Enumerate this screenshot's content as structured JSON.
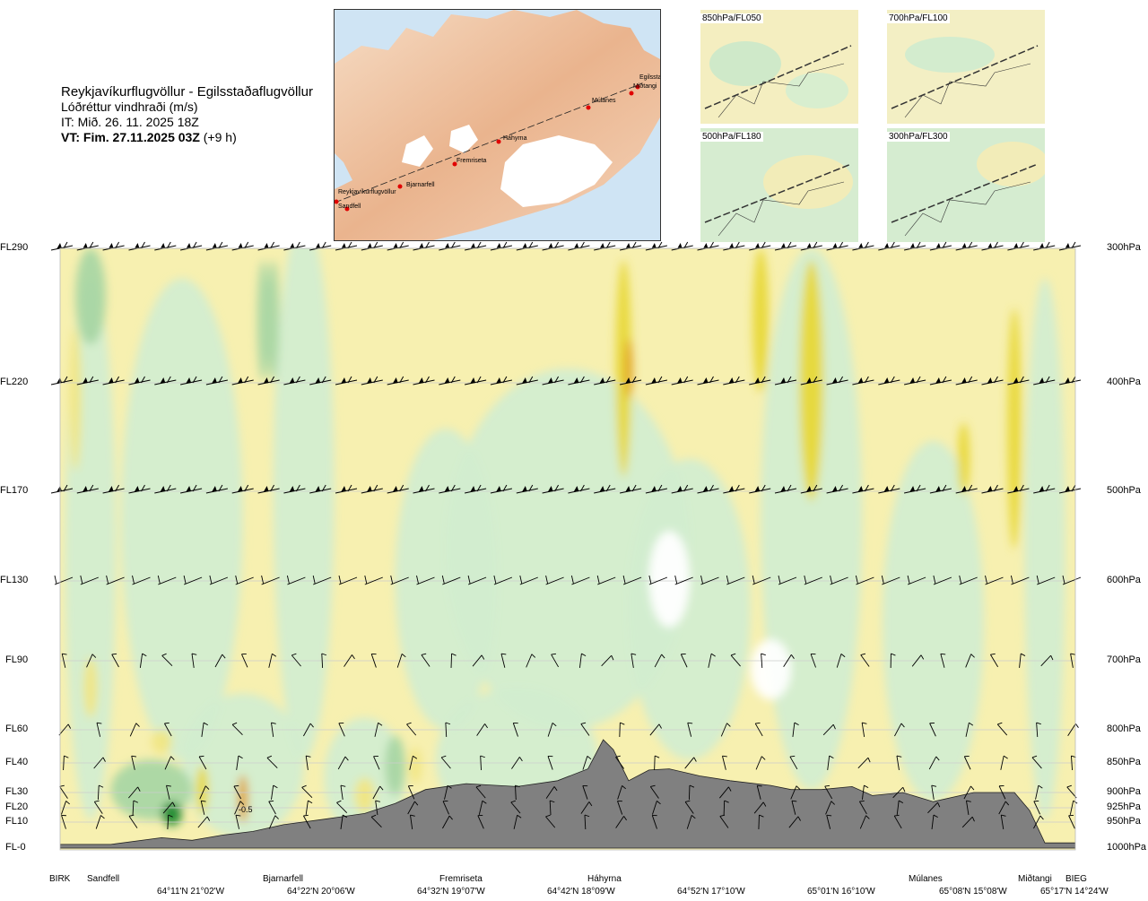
{
  "header": {
    "route": "Reykjavíkurflugvöllur - Egilsstaðaflugvöllur",
    "variable": "Lóðréttur vindhraði (m/s)",
    "issue_time": "IT: Mið. 26. 11. 2025 18Z",
    "valid_time_bold": "VT: Fim. 27.11.2025 03Z",
    "valid_time_offset": "(+9 h)"
  },
  "map": {
    "cities": [
      "Reykjavíkurflugvöllur",
      "Sandfell",
      "Bjarnarfell",
      "Fremriseta",
      "Háhyrna",
      "Múlanes",
      "Egilsstaðir",
      "Miðtangi"
    ]
  },
  "thumbnails": [
    {
      "label": "850hPa/FL050"
    },
    {
      "label": "700hPa/FL100"
    },
    {
      "label": "500hPa/FL180"
    },
    {
      "label": "300hPa/FL300"
    }
  ],
  "chart_data": {
    "type": "heatmap",
    "title": "Reykjavíkurflugvöllur - Egilsstaðaflugvöllur",
    "variable": "Lóðréttur vindhraði (m/s)",
    "x_axis": {
      "locations": [
        "BIRK",
        "Sandfell",
        "Bjarnarfell",
        "Fremriseta",
        "Háhyrna",
        "Múlanes",
        "Miðtangi",
        "BIEG"
      ],
      "location_pos": [
        0.0,
        0.05,
        0.22,
        0.39,
        0.54,
        0.83,
        0.96,
        1.0
      ],
      "coordinates": [
        "64°11'N 21°02'W",
        "64°22'N 20°06'W",
        "64°32'N 19°07'W",
        "64°42'N 18°09'W",
        "64°52'N 17°10'W",
        "65°01'N 16°10'W",
        "65°08'N 15°08'W",
        "65°17'N 14°24'W"
      ],
      "coordinate_pos": [
        0.125,
        0.25,
        0.385,
        0.515,
        0.645,
        0.775,
        0.9,
        1.0
      ]
    },
    "y_levels": [
      {
        "fl": "FL290",
        "hpa": "300hPa",
        "p": 300
      },
      {
        "fl": "FL220",
        "hpa": "400hPa",
        "p": 400
      },
      {
        "fl": "FL170",
        "hpa": "500hPa",
        "p": 500
      },
      {
        "fl": "FL130",
        "hpa": "600hPa",
        "p": 600
      },
      {
        "fl": "FL90",
        "hpa": "700hPa",
        "p": 700
      },
      {
        "fl": "FL60",
        "hpa": "800hPa",
        "p": 800
      },
      {
        "fl": "FL40",
        "hpa": "850hPa",
        "p": 850
      },
      {
        "fl": "FL30",
        "hpa": "900hPa",
        "p": 900
      },
      {
        "fl": "FL20",
        "hpa": "925hPa",
        "p": 925
      },
      {
        "fl": "FL10",
        "hpa": "950hPa",
        "p": 950
      },
      {
        "fl": "FL-0",
        "hpa": "1000hPa",
        "p": 1000
      }
    ],
    "contour_label": "-0.5",
    "colors": {
      "strong_down": "#1e8a2e",
      "down": "#7fc07a",
      "weak_down": "#a9d6a4",
      "slight_down": "#d3edd0",
      "neutral": "#ffffff",
      "slight_up": "#f7f0b0",
      "weak_up": "#f1e684",
      "up": "#e8d83a",
      "strong_up": "#e0a020",
      "terrain": "#808080"
    },
    "terrain": {
      "x": [
        0.0,
        0.05,
        0.1,
        0.13,
        0.16,
        0.19,
        0.22,
        0.26,
        0.3,
        0.33,
        0.36,
        0.4,
        0.45,
        0.49,
        0.52,
        0.535,
        0.545,
        0.56,
        0.58,
        0.6,
        0.63,
        0.66,
        0.7,
        0.72,
        0.75,
        0.78,
        0.8,
        0.83,
        0.86,
        0.9,
        0.94,
        0.955,
        0.97,
        1.0
      ],
      "p": [
        993,
        993,
        980,
        985,
        975,
        968,
        955,
        945,
        935,
        918,
        895,
        885,
        890,
        880,
        860,
        815,
        830,
        880,
        862,
        860,
        872,
        880,
        888,
        895,
        895,
        890,
        905,
        900,
        915,
        900,
        900,
        930,
        990,
        990
      ]
    },
    "wind_levels_hpa": [
      300,
      400,
      500,
      600,
      700,
      800,
      850,
      900,
      925,
      950
    ]
  }
}
